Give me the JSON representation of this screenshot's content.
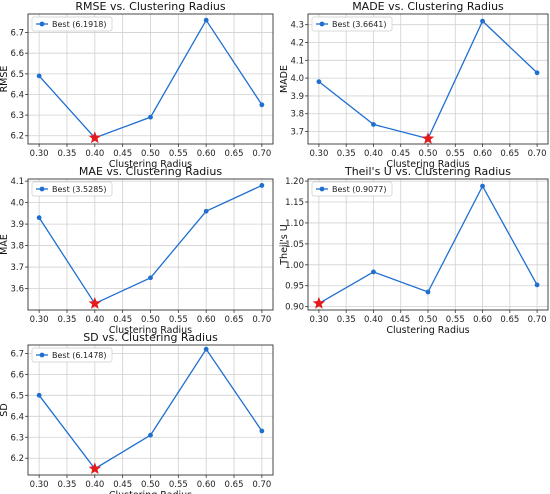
{
  "chart_data": [
    {
      "type": "line",
      "title": "RMSE vs. Clustering Radius",
      "xlabel": "Clustering Radius",
      "ylabel": "RMSE",
      "x": [
        0.3,
        0.4,
        0.5,
        0.6,
        0.7
      ],
      "series": [
        {
          "name": "Best (6.1918)",
          "values": [
            6.49,
            6.19,
            6.29,
            6.76,
            6.35
          ]
        }
      ],
      "best": {
        "x": 0.4,
        "y": 6.19
      },
      "xticks": [
        "0.30",
        "0.35",
        "0.40",
        "0.45",
        "0.50",
        "0.55",
        "0.60",
        "0.65",
        "0.70"
      ],
      "yticks": [
        "6.2",
        "6.3",
        "6.4",
        "6.5",
        "6.6",
        "6.7"
      ],
      "ylim": [
        6.16,
        6.79
      ],
      "grid": true,
      "legend": "top-left",
      "line_color": "#1f6fd1",
      "marker_color": "#e41a1c"
    },
    {
      "type": "line",
      "title": "MADE vs. Clustering Radius",
      "xlabel": "Clustering Radius",
      "ylabel": "MADE",
      "x": [
        0.3,
        0.4,
        0.5,
        0.6,
        0.7
      ],
      "series": [
        {
          "name": "Best (3.6641)",
          "values": [
            3.98,
            3.74,
            3.66,
            4.32,
            4.03
          ]
        }
      ],
      "best": {
        "x": 0.5,
        "y": 3.66
      },
      "xticks": [
        "0.30",
        "0.35",
        "0.40",
        "0.45",
        "0.50",
        "0.55",
        "0.60",
        "0.65",
        "0.70"
      ],
      "yticks": [
        "3.7",
        "3.8",
        "3.9",
        "4.0",
        "4.1",
        "4.2",
        "4.3"
      ],
      "ylim": [
        3.63,
        4.36
      ],
      "grid": true,
      "legend": "top-left",
      "line_color": "#1f6fd1",
      "marker_color": "#e41a1c"
    },
    {
      "type": "line",
      "title": "MAE vs. Clustering Radius",
      "xlabel": "Clustering Radius",
      "ylabel": "MAE",
      "x": [
        0.3,
        0.4,
        0.5,
        0.6,
        0.7
      ],
      "series": [
        {
          "name": "Best (3.5285)",
          "values": [
            3.93,
            3.53,
            3.65,
            3.96,
            4.08
          ]
        }
      ],
      "best": {
        "x": 0.4,
        "y": 3.53
      },
      "xticks": [
        "0.30",
        "0.35",
        "0.40",
        "0.45",
        "0.50",
        "0.55",
        "0.60",
        "0.65",
        "0.70"
      ],
      "yticks": [
        "3.6",
        "3.7",
        "3.8",
        "3.9",
        "4.0",
        "4.1"
      ],
      "ylim": [
        3.5,
        4.11
      ],
      "grid": true,
      "legend": "top-left",
      "line_color": "#1f6fd1",
      "marker_color": "#e41a1c"
    },
    {
      "type": "line",
      "title": "Theil's U vs. Clustering Radius",
      "xlabel": "Clustering Radius",
      "ylabel": "Theil's U",
      "x": [
        0.3,
        0.4,
        0.5,
        0.6,
        0.7
      ],
      "series": [
        {
          "name": "Best (0.9077)",
          "values": [
            0.9077,
            0.983,
            0.935,
            1.188,
            0.952
          ]
        }
      ],
      "best": {
        "x": 0.3,
        "y": 0.9077
      },
      "xticks": [
        "0.30",
        "0.35",
        "0.40",
        "0.45",
        "0.50",
        "0.55",
        "0.60",
        "0.65",
        "0.70"
      ],
      "yticks": [
        "0.90",
        "0.95",
        "1.00",
        "1.05",
        "1.10",
        "1.15",
        "1.20"
      ],
      "ylim": [
        0.892,
        1.205
      ],
      "grid": true,
      "legend": "top-left",
      "line_color": "#1f6fd1",
      "marker_color": "#e41a1c"
    },
    {
      "type": "line",
      "title": "SD vs. Clustering Radius",
      "xlabel": "Clustering Radius",
      "ylabel": "SD",
      "x": [
        0.3,
        0.4,
        0.5,
        0.6,
        0.7
      ],
      "series": [
        {
          "name": "Best (6.1478)",
          "values": [
            6.5,
            6.15,
            6.31,
            6.72,
            6.33
          ]
        }
      ],
      "best": {
        "x": 0.4,
        "y": 6.15
      },
      "xticks": [
        "0.30",
        "0.35",
        "0.40",
        "0.45",
        "0.50",
        "0.55",
        "0.60",
        "0.65",
        "0.70"
      ],
      "yticks": [
        "6.2",
        "6.3",
        "6.4",
        "6.5",
        "6.6",
        "6.7"
      ],
      "ylim": [
        6.12,
        6.74
      ],
      "grid": true,
      "legend": "top-left",
      "line_color": "#1f6fd1",
      "marker_color": "#e41a1c"
    }
  ]
}
